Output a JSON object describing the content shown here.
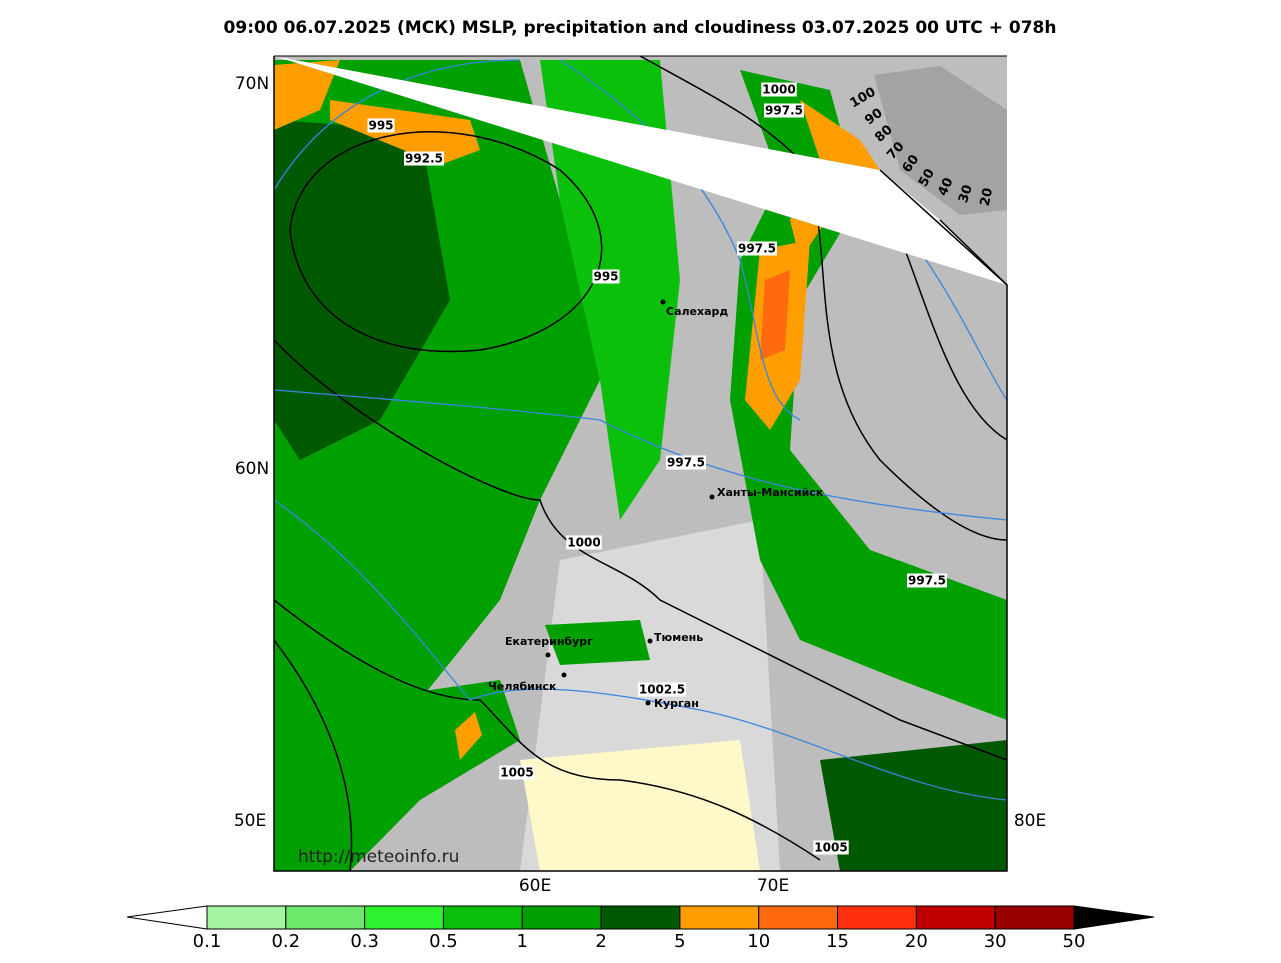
{
  "title": "09:00 06.07.2025 (МСК) MSLP, precipitation and cloudiness 03.07.2025 00 UTC + 078h",
  "map": {
    "lat_labels": [
      "70N",
      "60N"
    ],
    "lon_labels": [
      "50E",
      "60E",
      "70E",
      "80E"
    ],
    "isobar_labels": [
      995,
      992.5,
      995,
      997.5,
      1000,
      997.5,
      997.5,
      1000,
      997.5,
      1002.5,
      1005,
      1005
    ],
    "cities": [
      "Салехард",
      "Ханты-Мансийск",
      "Екатеринбург",
      "Тюмень",
      "Челябинск",
      "Курган"
    ],
    "watermark": "http://meteoinfo.ru",
    "cloud_scale_labels": [
      100,
      90,
      80,
      70,
      60,
      50,
      40,
      30,
      20
    ]
  },
  "colorbar": {
    "labels": [
      0.1,
      0.2,
      0.3,
      0.5,
      1,
      2,
      5,
      10,
      15,
      20,
      30,
      50
    ],
    "colors": [
      "#a6f5a0",
      "#6ee86a",
      "#2ef22e",
      "#0ac00a",
      "#00a000",
      "#005800",
      "#ff9e00",
      "#ff6a10",
      "#ff3010",
      "#c00000",
      "#980000"
    ]
  }
}
